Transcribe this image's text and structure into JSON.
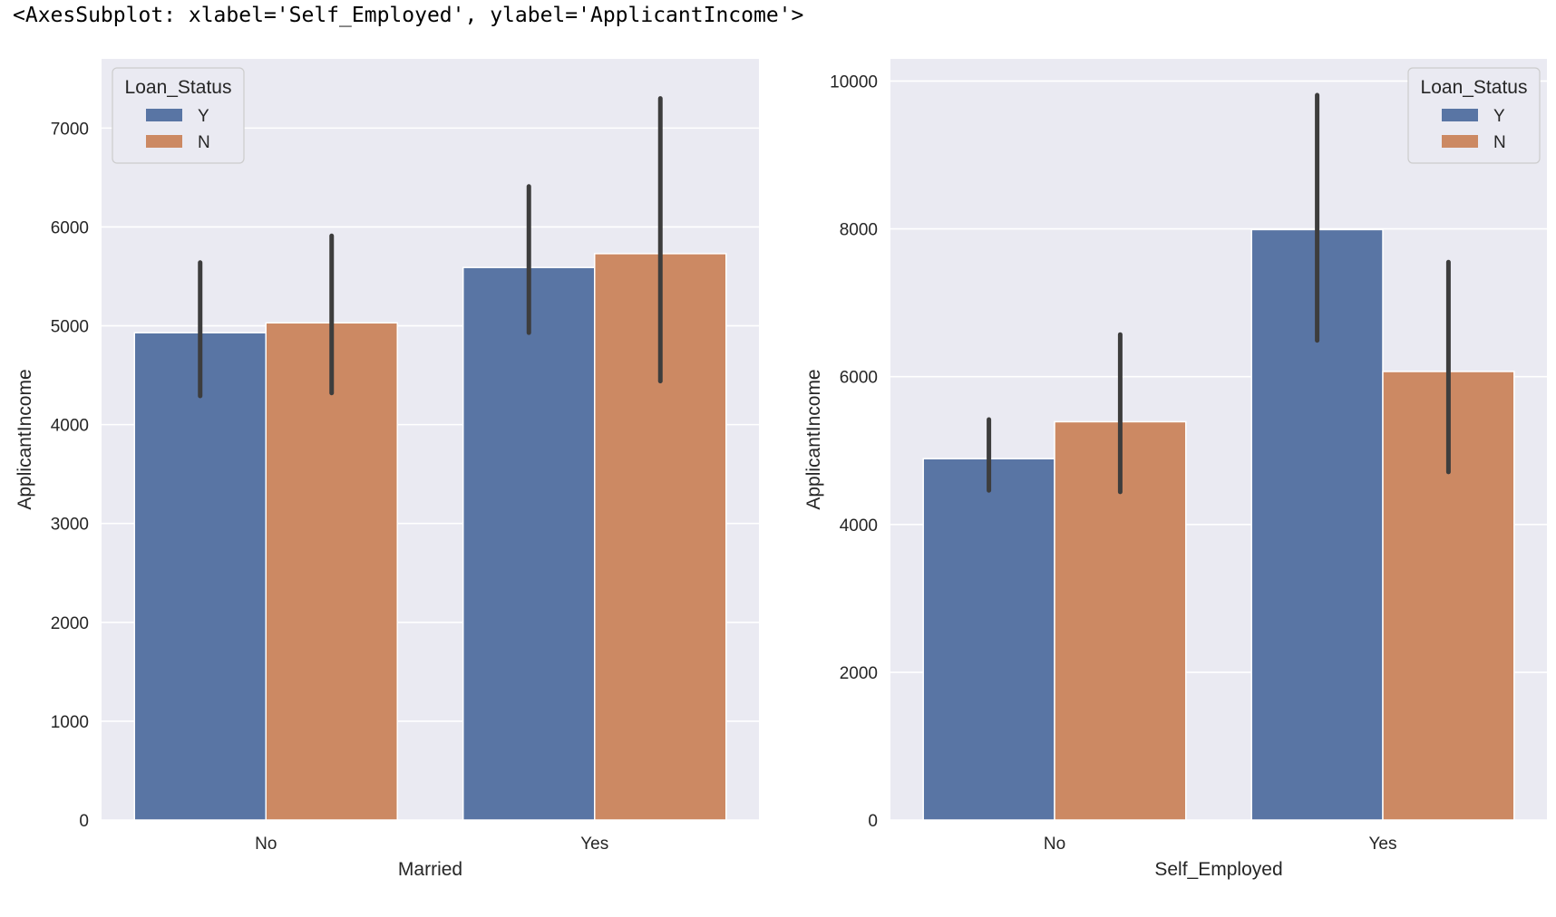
{
  "output_repr": "<AxesSubplot: xlabel='Self_Employed', ylabel='ApplicantIncome'>",
  "colors": {
    "Y": "#5975a4",
    "N": "#cc8963",
    "panel_bg": "#eaeaf2",
    "grid": "#ffffff",
    "errbar": "#3d3d3d"
  },
  "chart_data": [
    {
      "type": "bar",
      "xlabel": "Married",
      "ylabel": "ApplicantIncome",
      "categories": [
        "No",
        "Yes"
      ],
      "ylim": [
        0,
        7700
      ],
      "yticks": [
        0,
        1000,
        2000,
        3000,
        4000,
        5000,
        6000,
        7000
      ],
      "legend": {
        "title": "Loan_Status",
        "position": "upper left"
      },
      "series": [
        {
          "name": "Y",
          "values": [
            4930,
            5590
          ],
          "ci_low": [
            4290,
            4930
          ],
          "ci_high": [
            5640,
            6410
          ]
        },
        {
          "name": "N",
          "values": [
            5030,
            5730
          ],
          "ci_low": [
            4320,
            4440
          ],
          "ci_high": [
            5910,
            7300
          ]
        }
      ]
    },
    {
      "type": "bar",
      "xlabel": "Self_Employed",
      "ylabel": "ApplicantIncome",
      "categories": [
        "No",
        "Yes"
      ],
      "ylim": [
        0,
        10300
      ],
      "yticks": [
        0,
        2000,
        4000,
        6000,
        8000,
        10000
      ],
      "legend": {
        "title": "Loan_Status",
        "position": "upper right"
      },
      "series": [
        {
          "name": "Y",
          "values": [
            4890,
            7990
          ],
          "ci_low": [
            4460,
            6490
          ],
          "ci_high": [
            5420,
            9810
          ]
        },
        {
          "name": "N",
          "values": [
            5390,
            6070
          ],
          "ci_low": [
            4440,
            4710
          ],
          "ci_high": [
            6570,
            7550
          ]
        }
      ]
    }
  ]
}
